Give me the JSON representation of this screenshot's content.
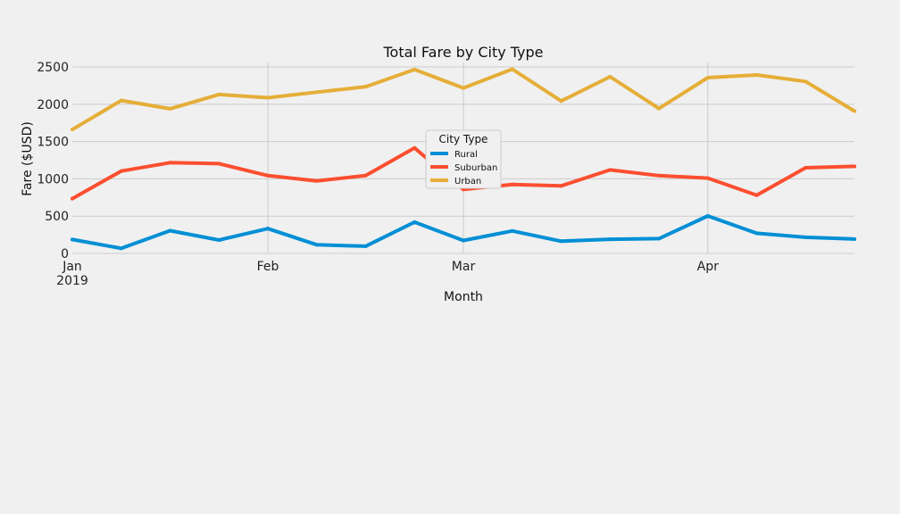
{
  "chart_data": {
    "type": "line",
    "title": "Total Fare by City Type",
    "xlabel": "Month",
    "ylabel": "Fare ($USD)",
    "x": [
      "2019-01-06",
      "2019-01-13",
      "2019-01-20",
      "2019-01-27",
      "2019-02-03",
      "2019-02-10",
      "2019-02-17",
      "2019-02-24",
      "2019-03-03",
      "2019-03-10",
      "2019-03-17",
      "2019-03-24",
      "2019-03-31",
      "2019-04-07",
      "2019-04-14",
      "2019-04-21",
      "2019-04-28"
    ],
    "x_range": [
      "2019-01-06",
      "2019-04-28"
    ],
    "x_ticks": [
      {
        "date": "2019-01-06",
        "label": "Jan",
        "sublabel": "2019"
      },
      {
        "date": "2019-02-03",
        "label": "Feb"
      },
      {
        "date": "2019-03-03",
        "label": "Mar"
      },
      {
        "date": "2019-04-07",
        "label": "Apr"
      }
    ],
    "ylim": [
      0,
      2560
    ],
    "y_ticks": [
      0,
      500,
      1000,
      1500,
      2000,
      2500
    ],
    "grid": true,
    "legend": {
      "title": "City Type",
      "placement": "center"
    },
    "series": [
      {
        "name": "Rural",
        "color": "#008fd5",
        "values": [
          187,
          68,
          305,
          179,
          333,
          116,
          97,
          420,
          173,
          301,
          164,
          190,
          199,
          502,
          270,
          216,
          192
        ]
      },
      {
        "name": "Suburban",
        "color": "#fc4f30",
        "values": [
          735,
          1104,
          1217,
          1203,
          1043,
          972,
          1043,
          1414,
          858,
          925,
          906,
          1120,
          1043,
          1010,
          780,
          1149,
          1167
        ]
      },
      {
        "name": "Urban",
        "color": "#e5ae38",
        "values": [
          1661,
          2050,
          1939,
          2130,
          2087,
          2162,
          2235,
          2466,
          2218,
          2470,
          2043,
          2369,
          1943,
          2357,
          2392,
          2305,
          1908
        ]
      }
    ]
  }
}
